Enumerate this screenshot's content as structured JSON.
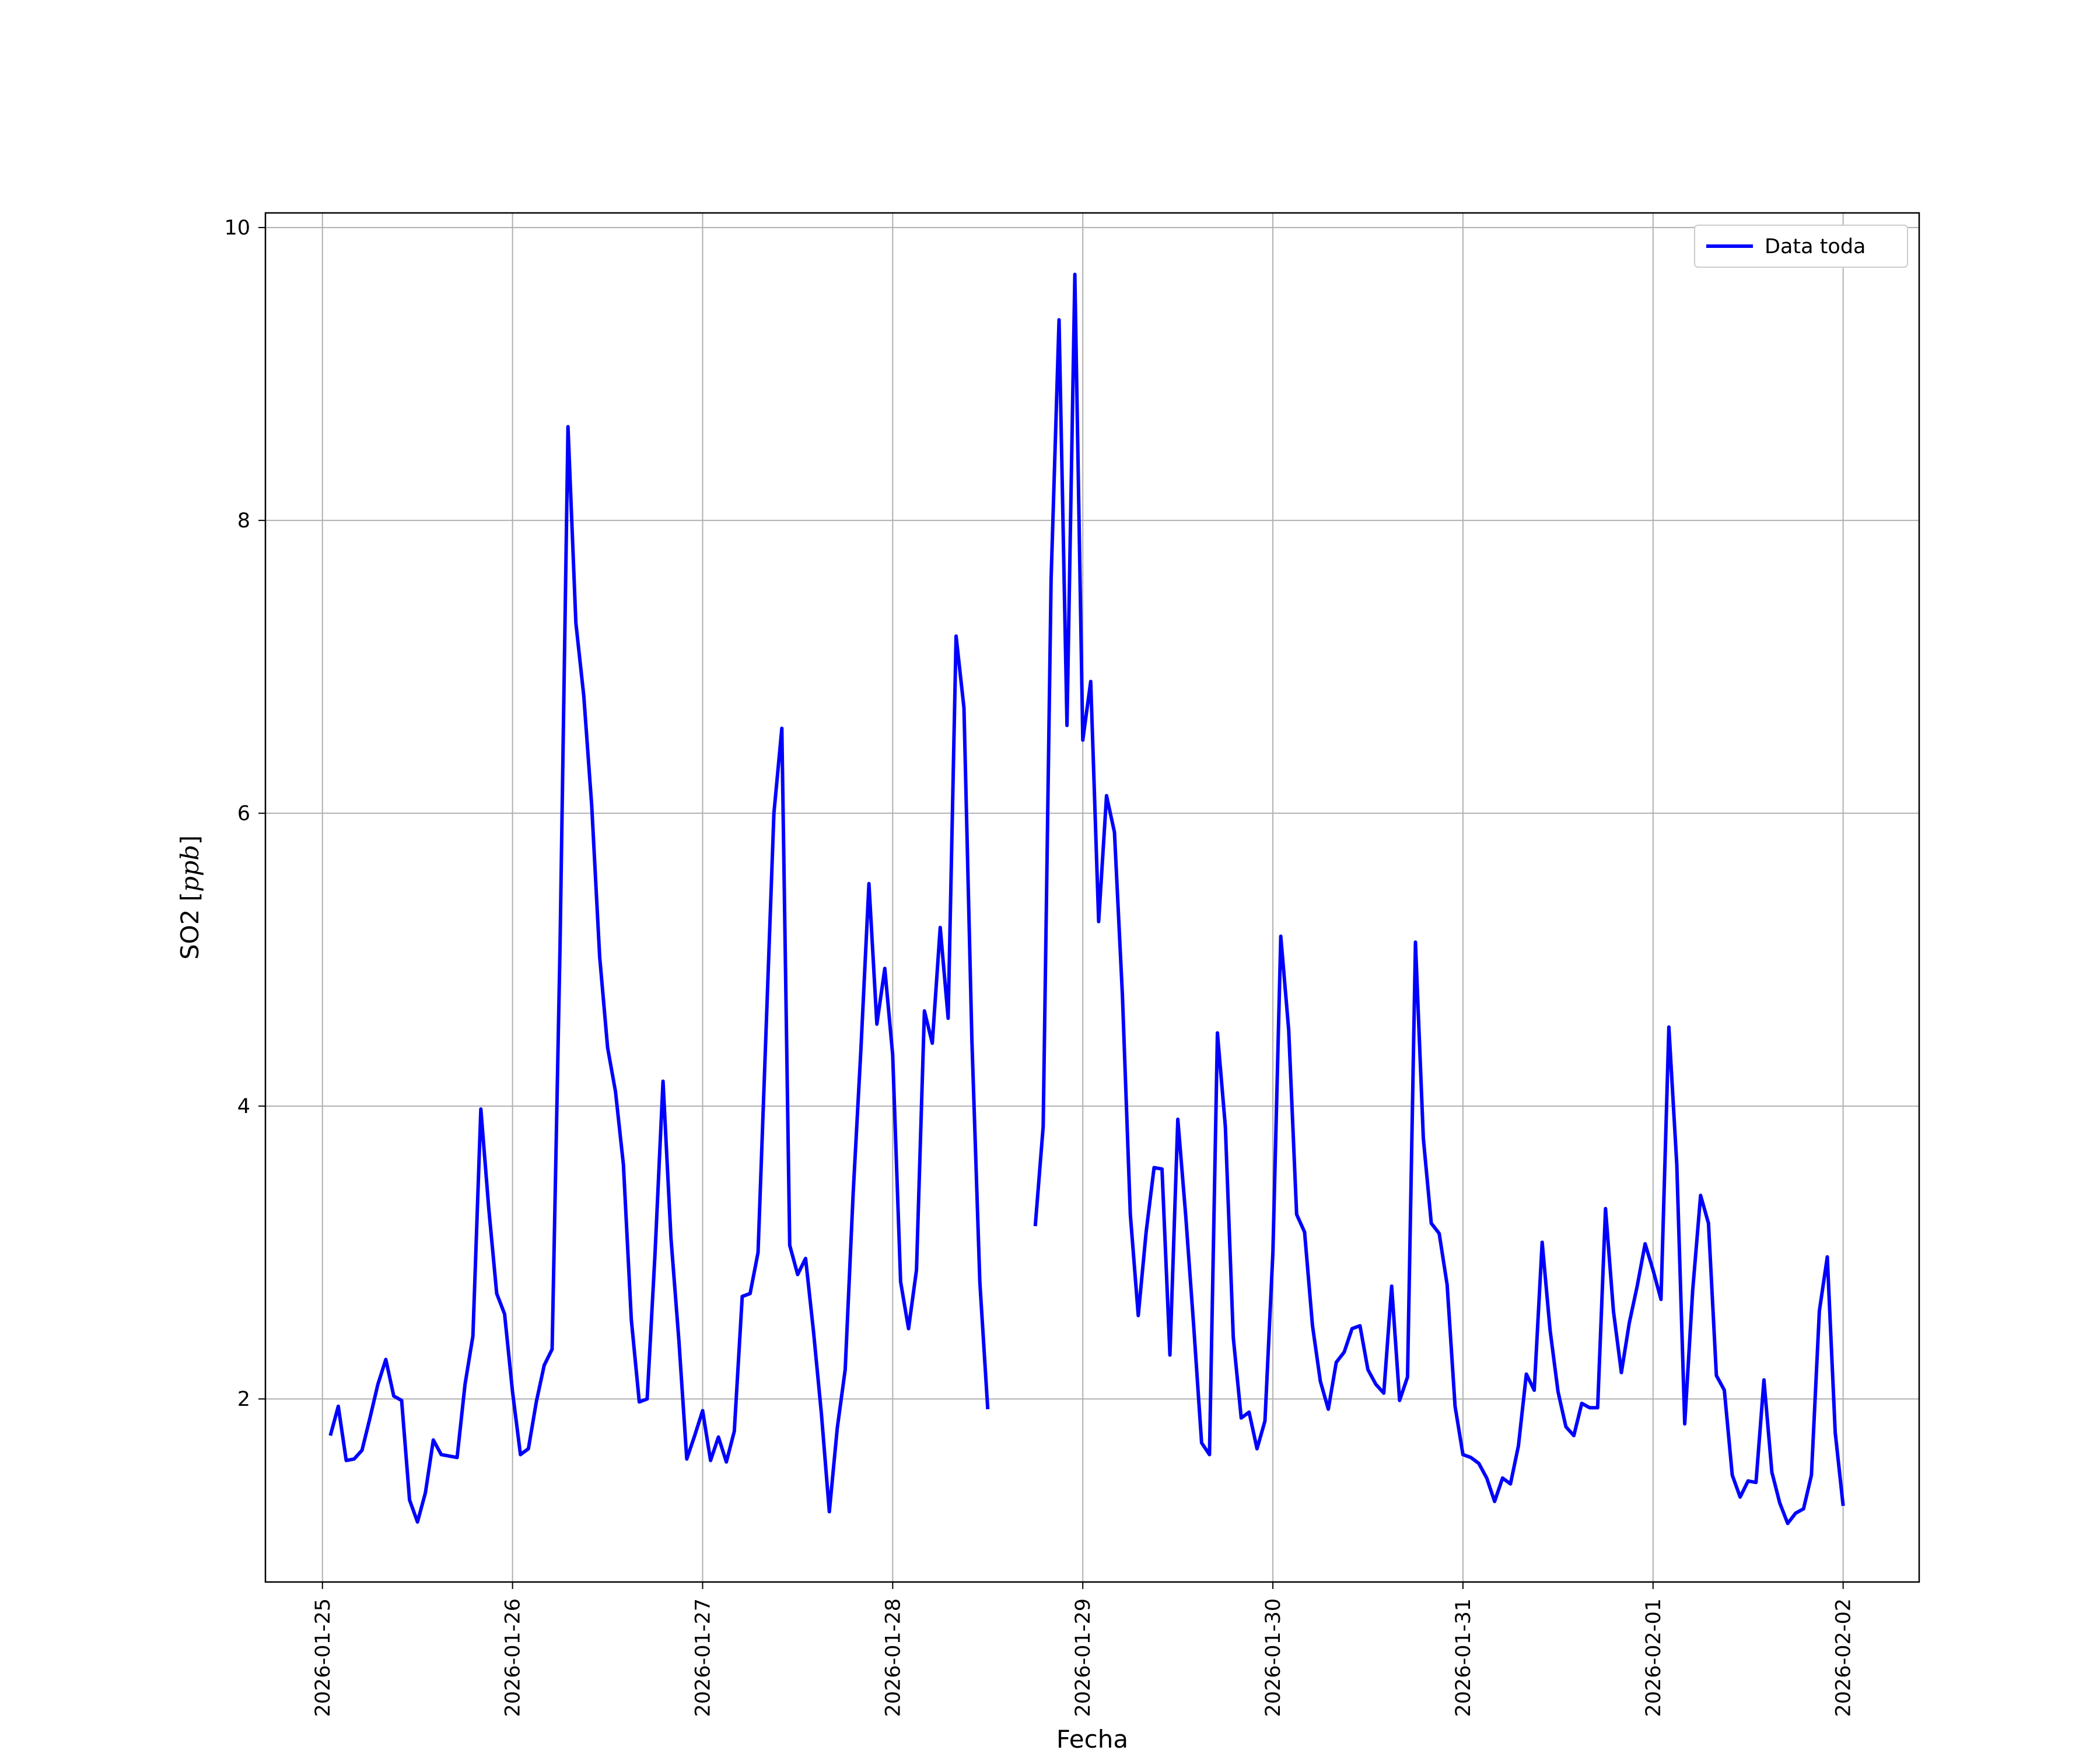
{
  "chart_data": {
    "type": "line",
    "xlabel": "Fecha",
    "ylabel": "SO2 [",
    "ylabel_unit": "ppb",
    "ylabel_close": "]",
    "x_ticks": [
      "2026-01-25",
      "2026-01-26",
      "2026-01-27",
      "2026-01-28",
      "2026-01-29",
      "2026-01-30",
      "2026-01-31",
      "2026-02-01",
      "2026-02-02"
    ],
    "y_ticks": [
      2,
      4,
      6,
      8,
      10
    ],
    "xlim": [
      "2026-01-24T16:48",
      "2026-02-02T09:36"
    ],
    "ylim": [
      0.75,
      10.1
    ],
    "grid": true,
    "legend_position": "top-right",
    "series": [
      {
        "name": "Data toda",
        "color": "#0000ff",
        "points": [
          [
            "2026-01-25T01:00",
            1.75
          ],
          [
            "2026-01-25T02:00",
            1.95
          ],
          [
            "2026-01-25T03:00",
            1.58
          ],
          [
            "2026-01-25T04:00",
            1.59
          ],
          [
            "2026-01-25T05:00",
            1.65
          ],
          [
            "2026-01-25T06:00",
            1.87
          ],
          [
            "2026-01-25T07:00",
            2.1
          ],
          [
            "2026-01-25T08:00",
            2.27
          ],
          [
            "2026-01-25T09:00",
            2.02
          ],
          [
            "2026-01-25T10:00",
            1.99
          ],
          [
            "2026-01-25T11:00",
            1.31
          ],
          [
            "2026-01-25T12:00",
            1.16
          ],
          [
            "2026-01-25T13:00",
            1.36
          ],
          [
            "2026-01-25T14:00",
            1.72
          ],
          [
            "2026-01-25T15:00",
            1.62
          ],
          [
            "2026-01-25T16:00",
            1.61
          ],
          [
            "2026-01-25T17:00",
            1.6
          ],
          [
            "2026-01-25T18:00",
            2.1
          ],
          [
            "2026-01-25T19:00",
            2.43
          ],
          [
            "2026-01-25T20:00",
            3.98
          ],
          [
            "2026-01-25T21:00",
            3.3
          ],
          [
            "2026-01-25T22:00",
            2.72
          ],
          [
            "2026-01-25T23:00",
            2.58
          ],
          [
            "2026-01-26T00:00",
            2.05
          ],
          [
            "2026-01-26T01:00",
            1.62
          ],
          [
            "2026-01-26T02:00",
            1.66
          ],
          [
            "2026-01-26T03:00",
            1.98
          ],
          [
            "2026-01-26T04:00",
            2.23
          ],
          [
            "2026-01-26T05:00",
            2.34
          ],
          [
            "2026-01-26T06:00",
            5.1
          ],
          [
            "2026-01-26T07:00",
            8.64
          ],
          [
            "2026-01-26T08:00",
            7.3
          ],
          [
            "2026-01-26T09:00",
            6.8
          ],
          [
            "2026-01-26T10:00",
            6.05
          ],
          [
            "2026-01-26T11:00",
            5.02
          ],
          [
            "2026-01-26T12:00",
            4.4
          ],
          [
            "2026-01-26T13:00",
            4.1
          ],
          [
            "2026-01-26T14:00",
            3.6
          ],
          [
            "2026-01-26T15:00",
            2.54
          ],
          [
            "2026-01-26T16:00",
            1.98
          ],
          [
            "2026-01-26T17:00",
            2.0
          ],
          [
            "2026-01-26T18:00",
            3.0
          ],
          [
            "2026-01-26T19:00",
            4.17
          ],
          [
            "2026-01-26T20:00",
            3.1
          ],
          [
            "2026-01-26T21:00",
            2.4
          ],
          [
            "2026-01-26T22:00",
            1.59
          ],
          [
            "2026-01-26T23:00",
            1.75
          ],
          [
            "2026-01-27T00:00",
            1.92
          ],
          [
            "2026-01-27T01:00",
            1.58
          ],
          [
            "2026-01-27T02:00",
            1.74
          ],
          [
            "2026-01-27T03:00",
            1.57
          ],
          [
            "2026-01-27T04:00",
            1.78
          ],
          [
            "2026-01-27T05:00",
            2.7
          ],
          [
            "2026-01-27T06:00",
            2.72
          ],
          [
            "2026-01-27T07:00",
            3.0
          ],
          [
            "2026-01-27T08:00",
            4.5
          ],
          [
            "2026-01-27T09:00",
            6.0
          ],
          [
            "2026-01-27T10:00",
            6.58
          ],
          [
            "2026-01-27T11:00",
            3.05
          ],
          [
            "2026-01-27T12:00",
            2.85
          ],
          [
            "2026-01-27T13:00",
            2.96
          ],
          [
            "2026-01-27T14:00",
            2.46
          ],
          [
            "2026-01-27T15:00",
            1.9
          ],
          [
            "2026-01-27T16:00",
            1.23
          ],
          [
            "2026-01-27T17:00",
            1.8
          ],
          [
            "2026-01-27T18:00",
            2.2
          ],
          [
            "2026-01-27T19:00",
            3.4
          ],
          [
            "2026-01-27T20:00",
            4.4
          ],
          [
            "2026-01-27T21:00",
            5.52
          ],
          [
            "2026-01-27T22:00",
            4.56
          ],
          [
            "2026-01-27T23:00",
            4.94
          ],
          [
            "2026-01-28T00:00",
            4.35
          ],
          [
            "2026-01-28T01:00",
            2.8
          ],
          [
            "2026-01-28T02:00",
            2.48
          ],
          [
            "2026-01-28T03:00",
            2.88
          ],
          [
            "2026-01-28T04:00",
            4.65
          ],
          [
            "2026-01-28T05:00",
            4.43
          ],
          [
            "2026-01-28T06:00",
            5.22
          ],
          [
            "2026-01-28T07:00",
            4.6
          ],
          [
            "2026-01-28T08:00",
            7.21
          ],
          [
            "2026-01-28T09:00",
            6.72
          ],
          [
            "2026-01-28T10:00",
            4.45
          ],
          [
            "2026-01-28T11:00",
            2.8
          ],
          [
            "2026-01-28T12:00",
            1.93
          ],
          null,
          [
            "2026-01-28T18:00",
            3.18
          ],
          [
            "2026-01-28T19:00",
            3.86
          ],
          [
            "2026-01-28T20:00",
            7.6
          ],
          [
            "2026-01-28T21:00",
            9.37
          ],
          [
            "2026-01-28T22:00",
            6.6
          ],
          [
            "2026-01-28T23:00",
            9.68
          ],
          [
            "2026-01-29T00:00",
            6.5
          ],
          [
            "2026-01-29T01:00",
            6.9
          ],
          [
            "2026-01-29T02:00",
            5.26
          ],
          [
            "2026-01-29T03:00",
            6.12
          ],
          [
            "2026-01-29T04:00",
            5.87
          ],
          [
            "2026-01-29T05:00",
            4.76
          ],
          [
            "2026-01-29T06:00",
            3.26
          ],
          [
            "2026-01-29T07:00",
            2.57
          ],
          [
            "2026-01-29T08:00",
            3.14
          ],
          [
            "2026-01-29T09:00",
            3.58
          ],
          [
            "2026-01-29T10:00",
            3.57
          ],
          [
            "2026-01-29T11:00",
            2.3
          ],
          [
            "2026-01-29T12:00",
            3.91
          ],
          [
            "2026-01-29T13:00",
            3.25
          ],
          [
            "2026-01-29T14:00",
            2.5
          ],
          [
            "2026-01-29T15:00",
            1.7
          ],
          [
            "2026-01-29T16:00",
            1.62
          ],
          [
            "2026-01-29T17:00",
            4.5
          ],
          [
            "2026-01-29T18:00",
            3.86
          ],
          [
            "2026-01-29T19:00",
            2.42
          ],
          [
            "2026-01-29T20:00",
            1.87
          ],
          [
            "2026-01-29T21:00",
            1.91
          ],
          [
            "2026-01-29T22:00",
            1.66
          ],
          [
            "2026-01-29T23:00",
            1.85
          ],
          [
            "2026-01-30T00:00",
            3.0
          ],
          [
            "2026-01-30T01:00",
            5.16
          ],
          [
            "2026-01-30T02:00",
            4.52
          ],
          [
            "2026-01-30T03:00",
            3.26
          ],
          [
            "2026-01-30T04:00",
            3.14
          ],
          [
            "2026-01-30T05:00",
            2.5
          ],
          [
            "2026-01-30T06:00",
            2.12
          ],
          [
            "2026-01-30T07:00",
            1.93
          ],
          [
            "2026-01-30T08:00",
            2.25
          ],
          [
            "2026-01-30T09:00",
            2.32
          ],
          [
            "2026-01-30T10:00",
            2.48
          ],
          [
            "2026-01-30T11:00",
            2.5
          ],
          [
            "2026-01-30T12:00",
            2.2
          ],
          [
            "2026-01-30T13:00",
            2.1
          ],
          [
            "2026-01-30T14:00",
            2.04
          ],
          [
            "2026-01-30T15:00",
            2.77
          ],
          [
            "2026-01-30T16:00",
            1.99
          ],
          [
            "2026-01-30T17:00",
            2.15
          ],
          [
            "2026-01-30T18:00",
            5.12
          ],
          [
            "2026-01-30T19:00",
            3.78
          ],
          [
            "2026-01-30T20:00",
            3.2
          ],
          [
            "2026-01-30T21:00",
            3.13
          ],
          [
            "2026-01-30T22:00",
            2.78
          ],
          [
            "2026-01-30T23:00",
            1.95
          ],
          [
            "2026-01-31T00:00",
            1.62
          ],
          [
            "2026-01-31T01:00",
            1.6
          ],
          [
            "2026-01-31T02:00",
            1.56
          ],
          [
            "2026-01-31T03:00",
            1.46
          ],
          [
            "2026-01-31T04:00",
            1.3
          ],
          [
            "2026-01-31T05:00",
            1.46
          ],
          [
            "2026-01-31T06:00",
            1.42
          ],
          [
            "2026-01-31T07:00",
            1.68
          ],
          [
            "2026-01-31T08:00",
            2.17
          ],
          [
            "2026-01-31T09:00",
            2.06
          ],
          [
            "2026-01-31T10:00",
            3.07
          ],
          [
            "2026-01-31T11:00",
            2.47
          ],
          [
            "2026-01-31T12:00",
            2.05
          ],
          [
            "2026-01-31T13:00",
            1.81
          ],
          [
            "2026-01-31T14:00",
            1.75
          ],
          [
            "2026-01-31T15:00",
            1.97
          ],
          [
            "2026-01-31T16:00",
            1.94
          ],
          [
            "2026-01-31T17:00",
            1.94
          ],
          [
            "2026-01-31T18:00",
            3.3
          ],
          [
            "2026-01-31T19:00",
            2.6
          ],
          [
            "2026-01-31T20:00",
            2.18
          ],
          [
            "2026-01-31T21:00",
            2.52
          ],
          [
            "2026-01-31T22:00",
            2.77
          ],
          [
            "2026-01-31T23:00",
            3.06
          ],
          [
            "2026-02-01T00:00",
            2.88
          ],
          [
            "2026-02-01T01:00",
            2.68
          ],
          [
            "2026-02-01T02:00",
            4.54
          ],
          [
            "2026-02-01T03:00",
            3.6
          ],
          [
            "2026-02-01T04:00",
            1.83
          ],
          [
            "2026-02-01T05:00",
            2.74
          ],
          [
            "2026-02-01T06:00",
            3.39
          ],
          [
            "2026-02-01T07:00",
            3.2
          ],
          [
            "2026-02-01T08:00",
            2.16
          ],
          [
            "2026-02-01T09:00",
            2.06
          ],
          [
            "2026-02-01T10:00",
            1.48
          ],
          [
            "2026-02-01T11:00",
            1.33
          ],
          [
            "2026-02-01T12:00",
            1.44
          ],
          [
            "2026-02-01T13:00",
            1.43
          ],
          [
            "2026-02-01T14:00",
            2.13
          ],
          [
            "2026-02-01T15:00",
            1.5
          ],
          [
            "2026-02-01T16:00",
            1.29
          ],
          [
            "2026-02-01T17:00",
            1.15
          ],
          [
            "2026-02-01T18:00",
            1.22
          ],
          [
            "2026-02-01T19:00",
            1.25
          ],
          [
            "2026-02-01T20:00",
            1.48
          ],
          [
            "2026-02-01T21:00",
            2.6
          ],
          [
            "2026-02-01T22:00",
            2.97
          ],
          [
            "2026-02-01T23:00",
            1.77
          ],
          [
            "2026-02-02T00:00",
            1.27
          ]
        ]
      }
    ]
  }
}
